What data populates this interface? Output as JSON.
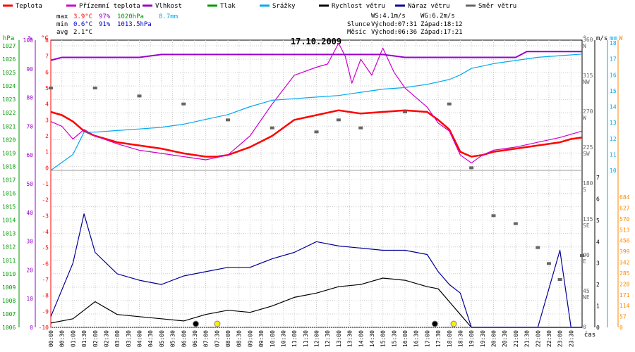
{
  "legend": [
    {
      "label": "Teplota",
      "color": "#ff0000"
    },
    {
      "label": "Přízemní teplota",
      "color": "#cc00cc"
    },
    {
      "label": "Vlhkost",
      "color": "#9900cc"
    },
    {
      "label": "Tlak",
      "color": "#009900"
    },
    {
      "label": "Srážky",
      "color": "#00aaee"
    },
    {
      "label": "Rychlost větru",
      "color": "#000000"
    },
    {
      "label": "Náraz větru",
      "color": "#000099"
    },
    {
      "label": "Směr větru",
      "color": "#666666"
    }
  ],
  "stats": {
    "max_label": "max",
    "min_label": "min",
    "avg_label": "avg",
    "max_temp": "3.9°C",
    "max_hum": "97%",
    "max_press": "1020hPa",
    "max_rain": "8.7mm",
    "min_temp": "0.6°C",
    "min_hum": "91%",
    "min_press": "1013.5hPa",
    "avg_temp": "2.1°C"
  },
  "wind_info": {
    "ws": "WS:4.1m/s",
    "wg": "WG:6.2m/s"
  },
  "sun": {
    "label": "Slunce",
    "rise": "Východ:07:31",
    "set": "Západ:18:12"
  },
  "moon": {
    "label": "Měsíc",
    "rise": "Východ:06:36",
    "set": "Západ:17:21"
  },
  "date_title": "17.10.2009",
  "x_axis_label": "čas",
  "chart_data": {
    "type": "line",
    "title": "17.10.2009",
    "x_categories": [
      "00:00",
      "00:30",
      "01:00",
      "01:30",
      "02:00",
      "02:30",
      "03:00",
      "03:30",
      "04:00",
      "04:30",
      "05:00",
      "05:30",
      "06:00",
      "06:30",
      "07:00",
      "07:30",
      "08:00",
      "08:30",
      "09:00",
      "09:30",
      "10:00",
      "10:30",
      "11:00",
      "11:30",
      "12:00",
      "12:30",
      "13:00",
      "13:30",
      "14:00",
      "14:30",
      "15:00",
      "15:30",
      "16:00",
      "16:30",
      "17:00",
      "17:30",
      "18:00",
      "18:30",
      "19:00",
      "19:30",
      "20:00",
      "20:30",
      "21:00",
      "21:30",
      "22:00",
      "22:30",
      "23:00",
      "23:30"
    ],
    "axes": {
      "hpa": {
        "label": "hPa",
        "ticks": [
          "1027",
          "1026",
          "1025",
          "1024",
          "1023",
          "1022",
          "1021",
          "1020",
          "1019",
          "1018",
          "1017",
          "1016",
          "1015",
          "1014",
          "1013",
          "1012",
          "1011",
          "1010",
          "1009",
          "1008",
          "1007",
          "1006"
        ],
        "ylim": [
          1006,
          1027
        ]
      },
      "pct": {
        "label": "%",
        "ticks": [
          "100",
          "90",
          "80",
          "70",
          "60",
          "50",
          "40",
          "30",
          "20",
          "10",
          "0"
        ],
        "ylim": [
          0,
          100
        ]
      },
      "temp": {
        "label": "°C",
        "ticks": [
          "8",
          "7",
          "6",
          "5",
          "4",
          "3",
          "2",
          "1",
          "0",
          "-1",
          "-2",
          "-3",
          "-4",
          "-5",
          "-6",
          "-7",
          "-8",
          "-9",
          "-10"
        ],
        "ylim": [
          -10,
          8
        ]
      },
      "dir": {
        "label": "°",
        "ticks": [
          [
            "360",
            "N"
          ],
          [
            "315",
            "NW"
          ],
          [
            "270",
            "W"
          ],
          [
            "225",
            "SW"
          ],
          [
            "180",
            "S"
          ],
          [
            "135",
            "SE"
          ],
          [
            "90",
            "E"
          ],
          [
            "45",
            "NE"
          ],
          [
            "0",
            ""
          ]
        ],
        "ylim": [
          0,
          360
        ]
      },
      "ms": {
        "label": "m/s",
        "ticks": [
          "7",
          "6",
          "5",
          "4",
          "3",
          "2",
          "1",
          "0"
        ],
        "ylim": [
          0,
          7
        ]
      },
      "mm": {
        "label": "mm",
        "ticks": [
          "18",
          "17",
          "16",
          "15",
          "14",
          "13",
          "12",
          "11",
          "10"
        ],
        "ylim": [
          10,
          18
        ]
      },
      "wm2": {
        "label": "W",
        "ticks": [
          "684",
          "627",
          "570",
          "513",
          "456",
          "399",
          "342",
          "285",
          "228",
          "171",
          "114",
          "57",
          "0"
        ],
        "ylim": [
          0,
          684
        ]
      }
    },
    "series": [
      {
        "name": "Teplota",
        "unit": "°C",
        "color": "#ff0000",
        "x": [
          0,
          0.5,
          1,
          1.5,
          2,
          3,
          4,
          5,
          6,
          7,
          7.5,
          8,
          9,
          10,
          11,
          12,
          13,
          14,
          15,
          16,
          17,
          17.5,
          18,
          18.5,
          19,
          19.5,
          20,
          21,
          22,
          23,
          23.5,
          24
        ],
        "y": [
          3.5,
          3.3,
          2.9,
          2.3,
          2.0,
          1.6,
          1.4,
          1.2,
          0.9,
          0.7,
          0.7,
          0.8,
          1.3,
          2.0,
          3.0,
          3.3,
          3.6,
          3.4,
          3.5,
          3.6,
          3.5,
          3.0,
          2.4,
          1.0,
          0.7,
          0.8,
          1.0,
          1.2,
          1.4,
          1.6,
          1.8,
          1.9
        ]
      },
      {
        "name": "Přízemní teplota",
        "unit": "°C",
        "color": "#cc00cc",
        "x": [
          0,
          0.5,
          1,
          1.5,
          2,
          3,
          4,
          5,
          6,
          7,
          8,
          9,
          10,
          11,
          12,
          12.5,
          13,
          13.3,
          13.6,
          14,
          14.5,
          15,
          15.5,
          16,
          17,
          17.5,
          18,
          18.5,
          19,
          19.5,
          20,
          21,
          22,
          23,
          24
        ],
        "y": [
          2.9,
          2.6,
          1.8,
          2.4,
          2.0,
          1.5,
          1.1,
          0.9,
          0.7,
          0.5,
          0.8,
          2.0,
          4.0,
          5.8,
          6.3,
          6.5,
          7.8,
          7.0,
          5.3,
          6.8,
          5.8,
          7.5,
          6.0,
          5.0,
          3.8,
          2.8,
          2.3,
          0.8,
          0.3,
          0.8,
          1.1,
          1.3,
          1.6,
          1.9,
          2.3
        ]
      },
      {
        "name": "Vlhkost",
        "unit": "%",
        "color": "#9900cc",
        "x": [
          0,
          0.5,
          1,
          2,
          3,
          4,
          5,
          6,
          7,
          8,
          9,
          10,
          11,
          12,
          13,
          14,
          15,
          16,
          17,
          18,
          19,
          20,
          21,
          21.5,
          22,
          23,
          24
        ],
        "y": [
          93,
          94,
          94,
          94,
          94,
          94,
          95,
          95,
          95,
          95,
          95,
          95,
          95,
          95,
          95,
          95,
          95,
          94,
          94,
          94,
          94,
          94,
          94,
          96,
          96,
          96,
          96
        ]
      },
      {
        "name": "Srážky",
        "unit": "mm",
        "color": "#00aaee",
        "x": [
          0,
          1,
          1.5,
          2,
          3,
          4,
          5,
          6,
          7,
          8,
          9,
          10,
          11,
          12,
          13,
          14,
          15,
          16,
          17,
          18,
          18.5,
          19,
          20,
          21,
          22,
          23,
          24
        ],
        "y": [
          10,
          11.0,
          12.4,
          12.4,
          12.5,
          12.6,
          12.7,
          12.9,
          13.2,
          13.5,
          14.0,
          14.4,
          14.5,
          14.6,
          14.7,
          14.9,
          15.1,
          15.2,
          15.4,
          15.7,
          16.0,
          16.4,
          16.7,
          16.9,
          17.1,
          17.2,
          17.3
        ]
      },
      {
        "name": "Rychlost větru",
        "unit": "m/s",
        "color": "#000000",
        "x": [
          0,
          1,
          2,
          3,
          4,
          5,
          6,
          7,
          8,
          9,
          10,
          11,
          12,
          13,
          14,
          15,
          16,
          17,
          17.5,
          18,
          18.5,
          19,
          20,
          21,
          22,
          23,
          24
        ],
        "y": [
          0.2,
          0.4,
          1.2,
          0.6,
          0.5,
          0.4,
          0.3,
          0.6,
          0.8,
          0.7,
          1.0,
          1.4,
          1.6,
          1.9,
          2.0,
          2.3,
          2.2,
          1.9,
          1.8,
          1.2,
          0.6,
          0,
          0,
          0,
          0,
          0,
          0
        ]
      },
      {
        "name": "Náraz větru",
        "unit": "m/s",
        "color": "#000099",
        "x": [
          0,
          1,
          1.5,
          2,
          3,
          4,
          5,
          6,
          7,
          8,
          9,
          10,
          11,
          12,
          13,
          14,
          15,
          16,
          17,
          17.5,
          18,
          18.5,
          19,
          20,
          21,
          22,
          23,
          23.5,
          24
        ],
        "y": [
          0.5,
          3.0,
          5.3,
          3.5,
          2.5,
          2.2,
          2.0,
          2.4,
          2.6,
          2.8,
          2.8,
          3.2,
          3.5,
          4.0,
          3.8,
          3.7,
          3.6,
          3.6,
          3.4,
          2.6,
          2.0,
          1.6,
          0,
          0,
          0,
          0,
          3.6,
          0,
          0
        ]
      },
      {
        "name": "Směr větru",
        "unit": "°",
        "color": "#666666",
        "x": [
          0,
          2,
          4,
          6,
          8,
          10,
          12,
          13,
          14,
          16,
          18,
          19,
          20,
          21,
          22,
          22.5,
          23,
          24
        ],
        "y": [
          300,
          300,
          290,
          280,
          260,
          250,
          245,
          260,
          250,
          270,
          280,
          200,
          140,
          130,
          100,
          80,
          60,
          90
        ]
      }
    ]
  }
}
